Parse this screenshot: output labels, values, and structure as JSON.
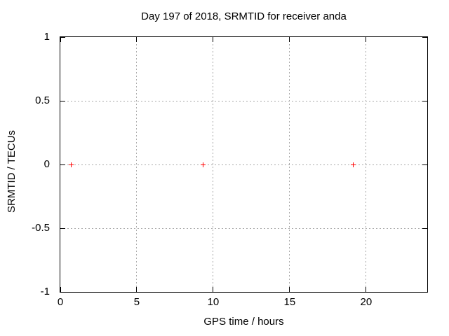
{
  "chart_data": {
    "type": "scatter",
    "title": "Day 197 of 2018, SRMTID for receiver anda",
    "xlabel": "GPS time / hours",
    "ylabel": "SRMTID / TECUs",
    "xlim": [
      0,
      24
    ],
    "ylim": [
      -1,
      1
    ],
    "xticks": [
      0,
      5,
      10,
      15,
      20
    ],
    "yticks": [
      -1,
      -0.5,
      0,
      0.5,
      1
    ],
    "grid": true,
    "legend": "none",
    "marker_style": "plus",
    "series": [
      {
        "name": "SRMTID",
        "marker": "plus",
        "color": "#ff0000",
        "points": [
          {
            "x": 0.73,
            "y": 0
          },
          {
            "x": 9.35,
            "y": 0
          },
          {
            "x": 19.15,
            "y": 0
          }
        ]
      }
    ]
  },
  "colors": {
    "background": "#ffffff",
    "axis": "#000000",
    "grid": "#a8a8a8",
    "marker": "#ff0000"
  }
}
